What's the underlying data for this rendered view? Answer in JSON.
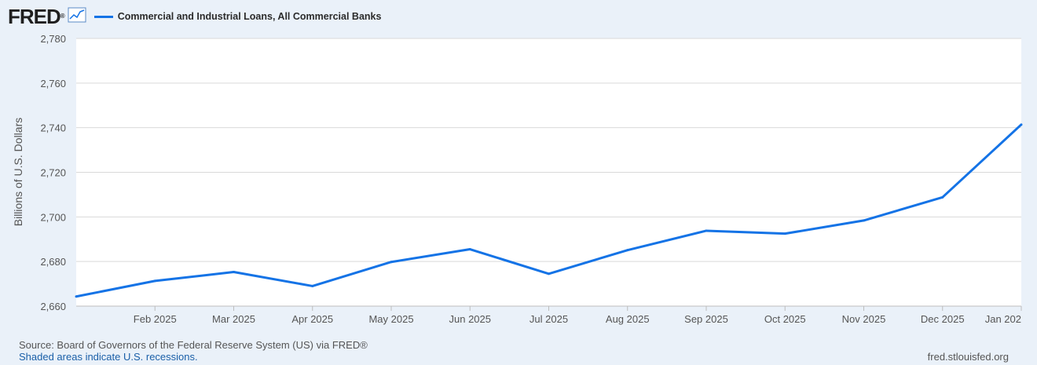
{
  "header": {
    "logo_text": "FRED",
    "logo_reg": "®",
    "legend_label": "Commercial and Industrial Loans, All Commercial Banks"
  },
  "colors": {
    "series": "#1473e6",
    "background": "#eaf1f9",
    "plot_background": "#ffffff",
    "grid": "#d9d9d9"
  },
  "chart_data": {
    "type": "line",
    "title": "",
    "ylabel": "Billions of U.S. Dollars",
    "xlabel": "",
    "ylim": [
      2660,
      2780
    ],
    "yticks": [
      2660,
      2680,
      2700,
      2720,
      2740,
      2760,
      2780
    ],
    "ytick_labels": [
      "2,660",
      "2,680",
      "2,700",
      "2,720",
      "2,740",
      "2,760",
      "2,780"
    ],
    "x": [
      "2025-01",
      "2025-02",
      "2025-03",
      "2025-04",
      "2025-05",
      "2025-06",
      "2025-07",
      "2025-08",
      "2025-09",
      "2025-10",
      "2025-11",
      "2025-12",
      "2026-01"
    ],
    "xtick_labels": [
      "Feb 2025",
      "Mar 2025",
      "Apr 2025",
      "May 2025",
      "Jun 2025",
      "Jul 2025",
      "Aug 2025",
      "Sep 2025",
      "Oct 2025",
      "Nov 2025",
      "Dec 2025",
      "Jan 202"
    ],
    "grid": true,
    "series": [
      {
        "name": "Commercial and Industrial Loans, All Commercial Banks",
        "values": [
          2664.3,
          2671.3,
          2675.3,
          2669.0,
          2679.8,
          2685.5,
          2674.5,
          2685.1,
          2693.8,
          2692.5,
          2698.4,
          2708.8,
          2741.4
        ]
      }
    ]
  },
  "footer": {
    "source": "Source: Board of Governors of the Federal Reserve System (US) via FRED®",
    "recessions": "Shaded areas indicate U.S. recessions.",
    "site": "fred.stlouisfed.org"
  }
}
